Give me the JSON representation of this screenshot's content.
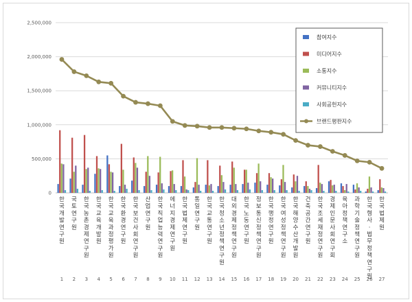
{
  "chart_data": {
    "type": "bar",
    "title": "",
    "xlabel": "",
    "ylabel": "",
    "ylim": [
      0,
      2500000
    ],
    "yticks": [
      0,
      500000,
      1000000,
      1500000,
      2000000,
      2500000
    ],
    "ytick_labels": [
      "0",
      "500,000",
      "1,000,000",
      "1,500,000",
      "2,000,000",
      "2,500,000"
    ],
    "grid": true,
    "legend_position": "top-right",
    "x_numbers": [
      "1",
      "2",
      "3",
      "4",
      "5",
      "6",
      "7",
      "8",
      "9",
      "10",
      "11",
      "12",
      "13",
      "14",
      "15",
      "16",
      "17",
      "18",
      "19",
      "20",
      "21",
      "22",
      "23",
      "24",
      "25",
      "26",
      "27"
    ],
    "categories": [
      "한국개발연구원",
      "국토연구원",
      "한국농촌경제연구원",
      "한국교육개발원",
      "한국교육과정평가원",
      "한국환경연구원",
      "한국보건사회연구원",
      "산업연구원",
      "한국직업능력연구원",
      "에너지경제연구원",
      "한국법제연구원",
      "통일연구원",
      "한국교통연구원",
      "한국청소년정책연구원",
      "대외경제정책연구원",
      "한국노동연구원",
      "정보통신정책연구원",
      "한국행정연구원",
      "한국여성정책연구원",
      "한국해양수산개발원",
      "건축공간연구원",
      "한국조세재정연구원",
      "경제인문사회연구회",
      "육아정책연구소",
      "과학기술정책연구원",
      "한국형사·법무정책연구원",
      "한국법제원"
    ],
    "series": [
      {
        "name": "참여지수",
        "color": "#4472c4",
        "values": [
          130000,
          210000,
          120000,
          280000,
          550000,
          100000,
          180000,
          100000,
          120000,
          100000,
          100000,
          80000,
          120000,
          100000,
          120000,
          130000,
          150000,
          120000,
          110000,
          80000,
          100000,
          70000,
          170000,
          140000,
          120000,
          20000,
          40000
        ]
      },
      {
        "name": "미디어지수",
        "color": "#c0504d",
        "values": [
          920000,
          810000,
          850000,
          540000,
          420000,
          720000,
          520000,
          310000,
          300000,
          320000,
          480000,
          160000,
          480000,
          400000,
          460000,
          340000,
          290000,
          290000,
          200000,
          270000,
          170000,
          410000,
          190000,
          100000,
          50000,
          60000,
          200000
        ]
      },
      {
        "name": "소통지수",
        "color": "#9bbb59",
        "values": [
          430000,
          310000,
          350000,
          360000,
          310000,
          340000,
          440000,
          540000,
          530000,
          330000,
          240000,
          510000,
          110000,
          260000,
          370000,
          340000,
          430000,
          230000,
          410000,
          170000,
          100000,
          150000,
          110000,
          40000,
          140000,
          240000,
          80000
        ]
      },
      {
        "name": "커뮤니티지수",
        "color": "#8064a2",
        "values": [
          420000,
          400000,
          370000,
          350000,
          300000,
          120000,
          370000,
          250000,
          140000,
          130000,
          50000,
          120000,
          130000,
          160000,
          130000,
          150000,
          170000,
          210000,
          160000,
          250000,
          60000,
          130000,
          120000,
          130000,
          80000,
          80000,
          70000
        ]
      },
      {
        "name": "사회공헌지수",
        "color": "#4bacc6",
        "values": [
          40000,
          60000,
          30000,
          40000,
          30000,
          60000,
          40000,
          40000,
          50000,
          40000,
          40000,
          30000,
          30000,
          50000,
          40000,
          50000,
          40000,
          40000,
          40000,
          30000,
          40000,
          30000,
          30000,
          20000,
          30000,
          20000,
          20000
        ]
      },
      {
        "name": "브랜드평판지수",
        "color": "#948a54",
        "values": [
          1960000,
          1780000,
          1720000,
          1630000,
          1610000,
          1420000,
          1330000,
          1310000,
          1280000,
          1050000,
          990000,
          980000,
          960000,
          960000,
          950000,
          940000,
          910000,
          890000,
          860000,
          770000,
          700000,
          680000,
          610000,
          550000,
          470000,
          450000,
          360000
        ]
      }
    ]
  }
}
